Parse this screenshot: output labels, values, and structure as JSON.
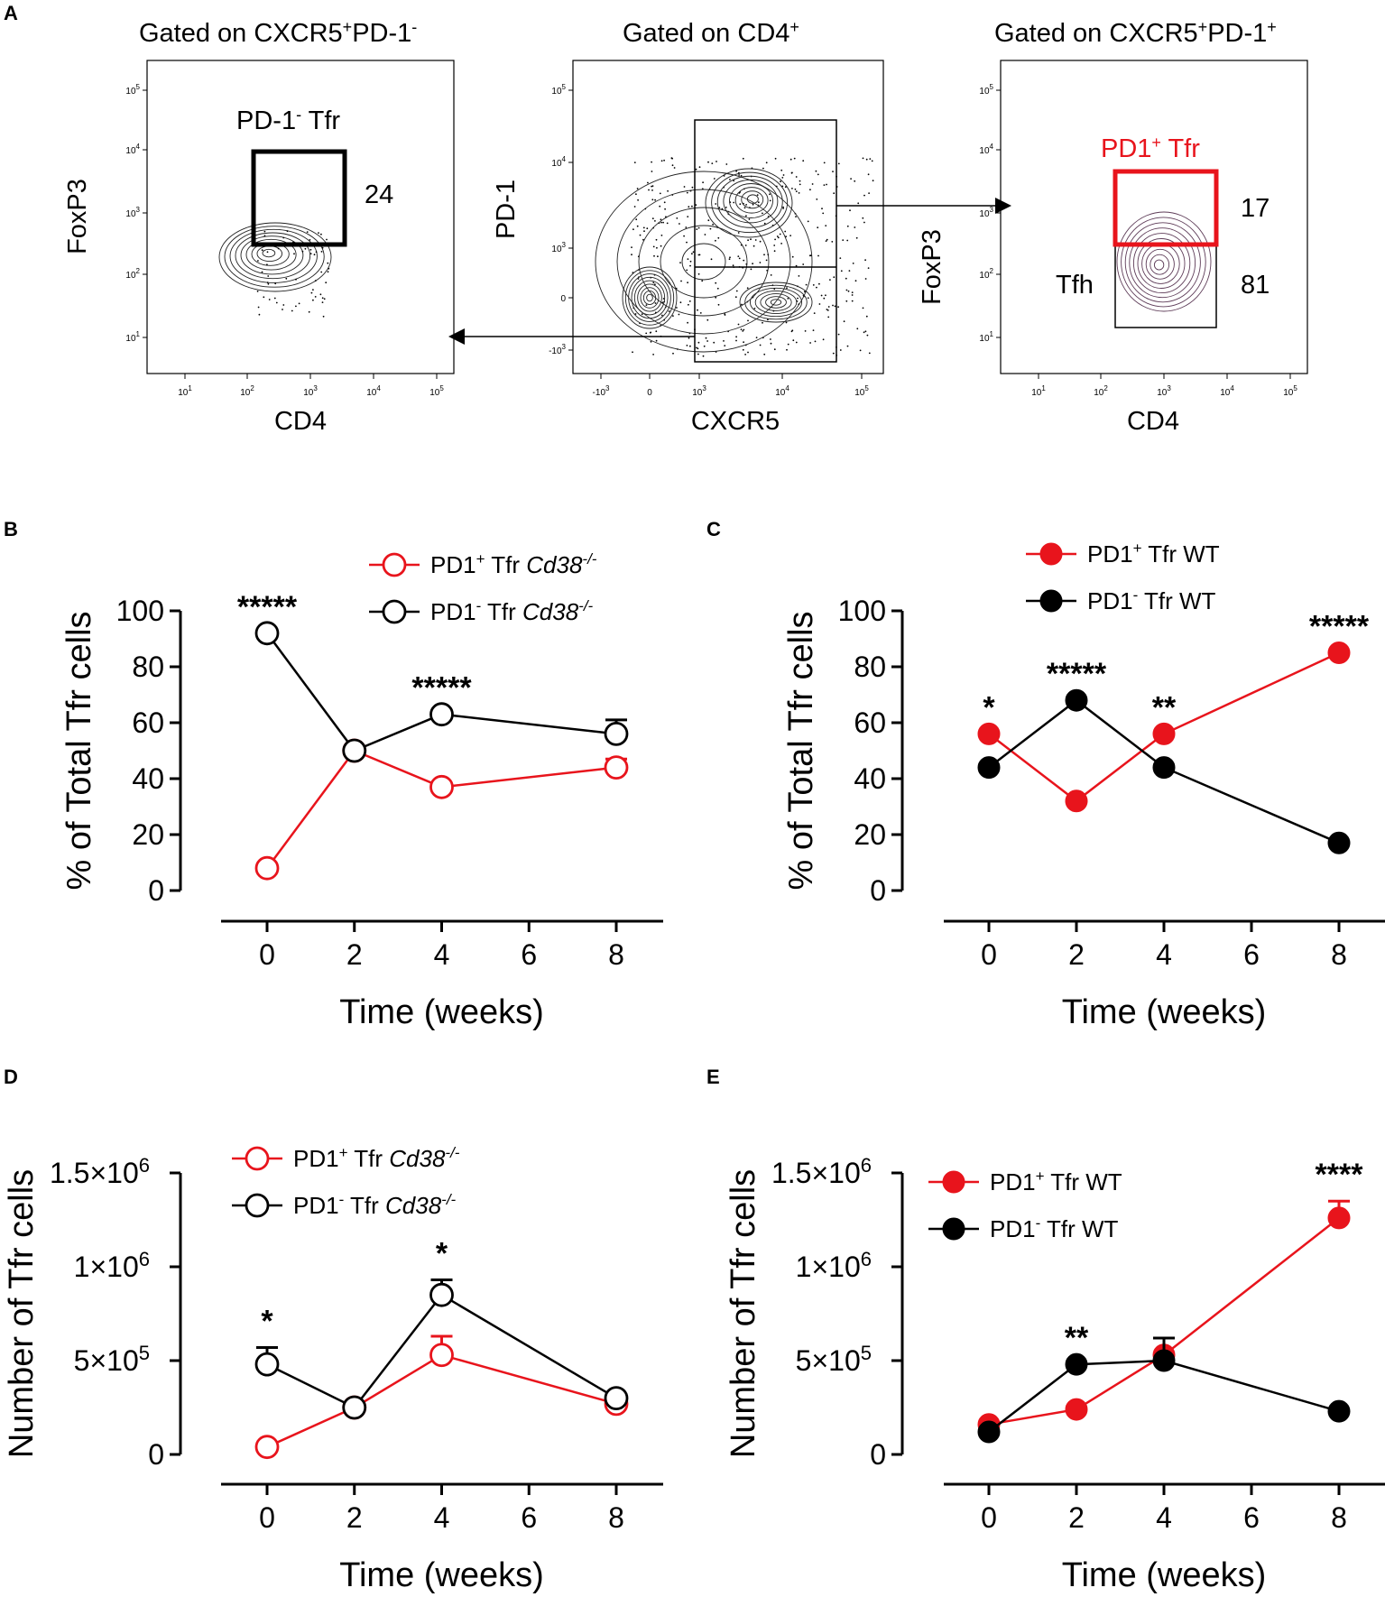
{
  "colors": {
    "red": "#e8141c",
    "black": "#000000",
    "purple": "#5e3c58"
  },
  "panel_a": {
    "letter": "A",
    "left": {
      "title_main": "Gated on CXCR5",
      "title_sup1": "+",
      "title_mid": "PD-1",
      "title_sup2": "-",
      "xlabel": "CD4",
      "ylabel": "FoxP3",
      "gate_name": "PD-1",
      "gate_sup": "-",
      "gate_suffix": " Tfr",
      "gate_value": "24",
      "xticks": [
        "10",
        "10",
        "10",
        "10",
        "10"
      ],
      "xtick_exps": [
        "1",
        "2",
        "3",
        "4",
        "5"
      ],
      "yticks": [
        "10",
        "10",
        "10",
        "10",
        "10"
      ],
      "ytick_exps": [
        "5",
        "4",
        "3",
        "2",
        "1"
      ]
    },
    "middle": {
      "title_main": "Gated on CD4",
      "title_sup": "+",
      "xlabel": "CXCR5",
      "ylabel": "PD-1",
      "xticks": [
        "-10",
        "0",
        "10",
        "10",
        "10"
      ],
      "xtick_exps": [
        "3",
        "",
        "3",
        "4",
        "5"
      ],
      "yticks": [
        "10",
        "10",
        "10",
        "0",
        "-10"
      ],
      "ytick_exps": [
        "5",
        "4",
        "3",
        "",
        "3"
      ]
    },
    "right": {
      "title_main": "Gated on CXCR5",
      "title_sup1": "+",
      "title_mid": "PD-1",
      "title_sup2": "+",
      "xlabel": "CD4",
      "ylabel": "FoxP3",
      "gate1_name": "PD1",
      "gate1_sup": "+",
      "gate1_suffix": " Tfr",
      "gate1_value": "17",
      "gate2_name": "Tfh",
      "gate2_value": "81",
      "xticks": [
        "10",
        "10",
        "10",
        "10",
        "10"
      ],
      "xtick_exps": [
        "1",
        "2",
        "3",
        "4",
        "5"
      ],
      "yticks": [
        "10",
        "10",
        "10",
        "10",
        "10"
      ],
      "ytick_exps": [
        "5",
        "4",
        "3",
        "2",
        "1"
      ]
    }
  },
  "chart_data": [
    {
      "panel": "B",
      "type": "line",
      "xlabel": "Time (weeks)",
      "ylabel": "% of Total Tfr cells",
      "x": [
        0,
        2,
        4,
        8
      ],
      "xticks": [
        "0",
        "2",
        "4",
        "6",
        "8"
      ],
      "ylim": [
        0,
        100
      ],
      "yticks": [
        "0",
        "20",
        "40",
        "60",
        "80",
        "100"
      ],
      "series": [
        {
          "name": "PD1",
          "sup": "+",
          "suffix": " Tfr ",
          "genotype": "Cd38",
          "gsup": "-/-",
          "filled": false,
          "color": "#e8141c",
          "values": [
            8,
            50,
            37,
            44
          ],
          "errors": [
            0,
            0,
            0,
            3
          ]
        },
        {
          "name": "PD1",
          "sup": "-",
          "suffix": " Tfr ",
          "genotype": "Cd38",
          "gsup": "-/-",
          "filled": false,
          "color": "#000000",
          "values": [
            92,
            50,
            63,
            56
          ],
          "errors": [
            0,
            0,
            0,
            5
          ]
        }
      ],
      "annotations": [
        {
          "x": 0,
          "y": 92,
          "text": "*****"
        },
        {
          "x": 4,
          "y": 63,
          "text": "*****"
        }
      ]
    },
    {
      "panel": "C",
      "type": "line",
      "xlabel": "Time (weeks)",
      "ylabel": "% of Total Tfr cells",
      "x": [
        0,
        2,
        4,
        8
      ],
      "xticks": [
        "0",
        "2",
        "4",
        "6",
        "8"
      ],
      "ylim": [
        0,
        100
      ],
      "yticks": [
        "0",
        "20",
        "40",
        "60",
        "80",
        "100"
      ],
      "series": [
        {
          "name": "PD1",
          "sup": "+",
          "suffix": " Tfr WT",
          "genotype": "",
          "gsup": "",
          "filled": true,
          "color": "#e8141c",
          "values": [
            56,
            32,
            56,
            85
          ],
          "errors": [
            0,
            0,
            0,
            0
          ]
        },
        {
          "name": "PD1",
          "sup": "-",
          "suffix": " Tfr WT",
          "genotype": "",
          "gsup": "",
          "filled": true,
          "color": "#000000",
          "values": [
            44,
            68,
            44,
            17
          ],
          "errors": [
            0,
            0,
            0,
            0
          ]
        }
      ],
      "annotations": [
        {
          "x": 0,
          "y": 56,
          "text": "*"
        },
        {
          "x": 2,
          "y": 68,
          "text": "*****"
        },
        {
          "x": 4,
          "y": 56,
          "text": "**"
        },
        {
          "x": 8,
          "y": 85,
          "text": "*****"
        }
      ]
    },
    {
      "panel": "D",
      "type": "line",
      "xlabel": "Time (weeks)",
      "ylabel": "Number of Tfr cells",
      "x": [
        0,
        2,
        4,
        8
      ],
      "xticks": [
        "0",
        "2",
        "4",
        "6",
        "8"
      ],
      "ylim": [
        0,
        1500000
      ],
      "yticks": [
        "0",
        "5×10",
        "1×10",
        "1.5×10"
      ],
      "ytick_exps": [
        "",
        "5",
        "6",
        "6"
      ],
      "series": [
        {
          "name": "PD1",
          "sup": "+",
          "suffix": " Tfr ",
          "genotype": "Cd38",
          "gsup": "-/-",
          "filled": false,
          "color": "#e8141c",
          "values": [
            40000,
            250000,
            530000,
            270000
          ],
          "errors": [
            0,
            0,
            100000,
            0
          ]
        },
        {
          "name": "PD1",
          "sup": "-",
          "suffix": " Tfr ",
          "genotype": "Cd38",
          "gsup": "-/-",
          "filled": false,
          "color": "#000000",
          "values": [
            480000,
            250000,
            850000,
            300000
          ],
          "errors": [
            90000,
            0,
            80000,
            0
          ]
        }
      ],
      "annotations": [
        {
          "x": 0,
          "y": 570000,
          "text": "*"
        },
        {
          "x": 4,
          "y": 930000,
          "text": "*"
        }
      ]
    },
    {
      "panel": "E",
      "type": "line",
      "xlabel": "Time (weeks)",
      "ylabel": "Number of Tfr cells",
      "x": [
        0,
        2,
        4,
        8
      ],
      "xticks": [
        "0",
        "2",
        "4",
        "6",
        "8"
      ],
      "ylim": [
        0,
        1500000
      ],
      "yticks": [
        "0",
        "5×10",
        "1×10",
        "1.5×10"
      ],
      "ytick_exps": [
        "",
        "5",
        "6",
        "6"
      ],
      "series": [
        {
          "name": "PD1",
          "sup": "+",
          "suffix": " Tfr WT",
          "genotype": "",
          "gsup": "",
          "filled": true,
          "color": "#e8141c",
          "values": [
            160000,
            240000,
            530000,
            1260000
          ],
          "errors": [
            0,
            0,
            0,
            90000
          ]
        },
        {
          "name": "PD1",
          "sup": "-",
          "suffix": " Tfr WT",
          "genotype": "",
          "gsup": "",
          "filled": true,
          "color": "#000000",
          "values": [
            120000,
            480000,
            500000,
            230000
          ],
          "errors": [
            0,
            0,
            120000,
            0
          ]
        }
      ],
      "annotations": [
        {
          "x": 2,
          "y": 480000,
          "text": "**"
        },
        {
          "x": 8,
          "y": 1350000,
          "text": "****"
        }
      ]
    }
  ]
}
